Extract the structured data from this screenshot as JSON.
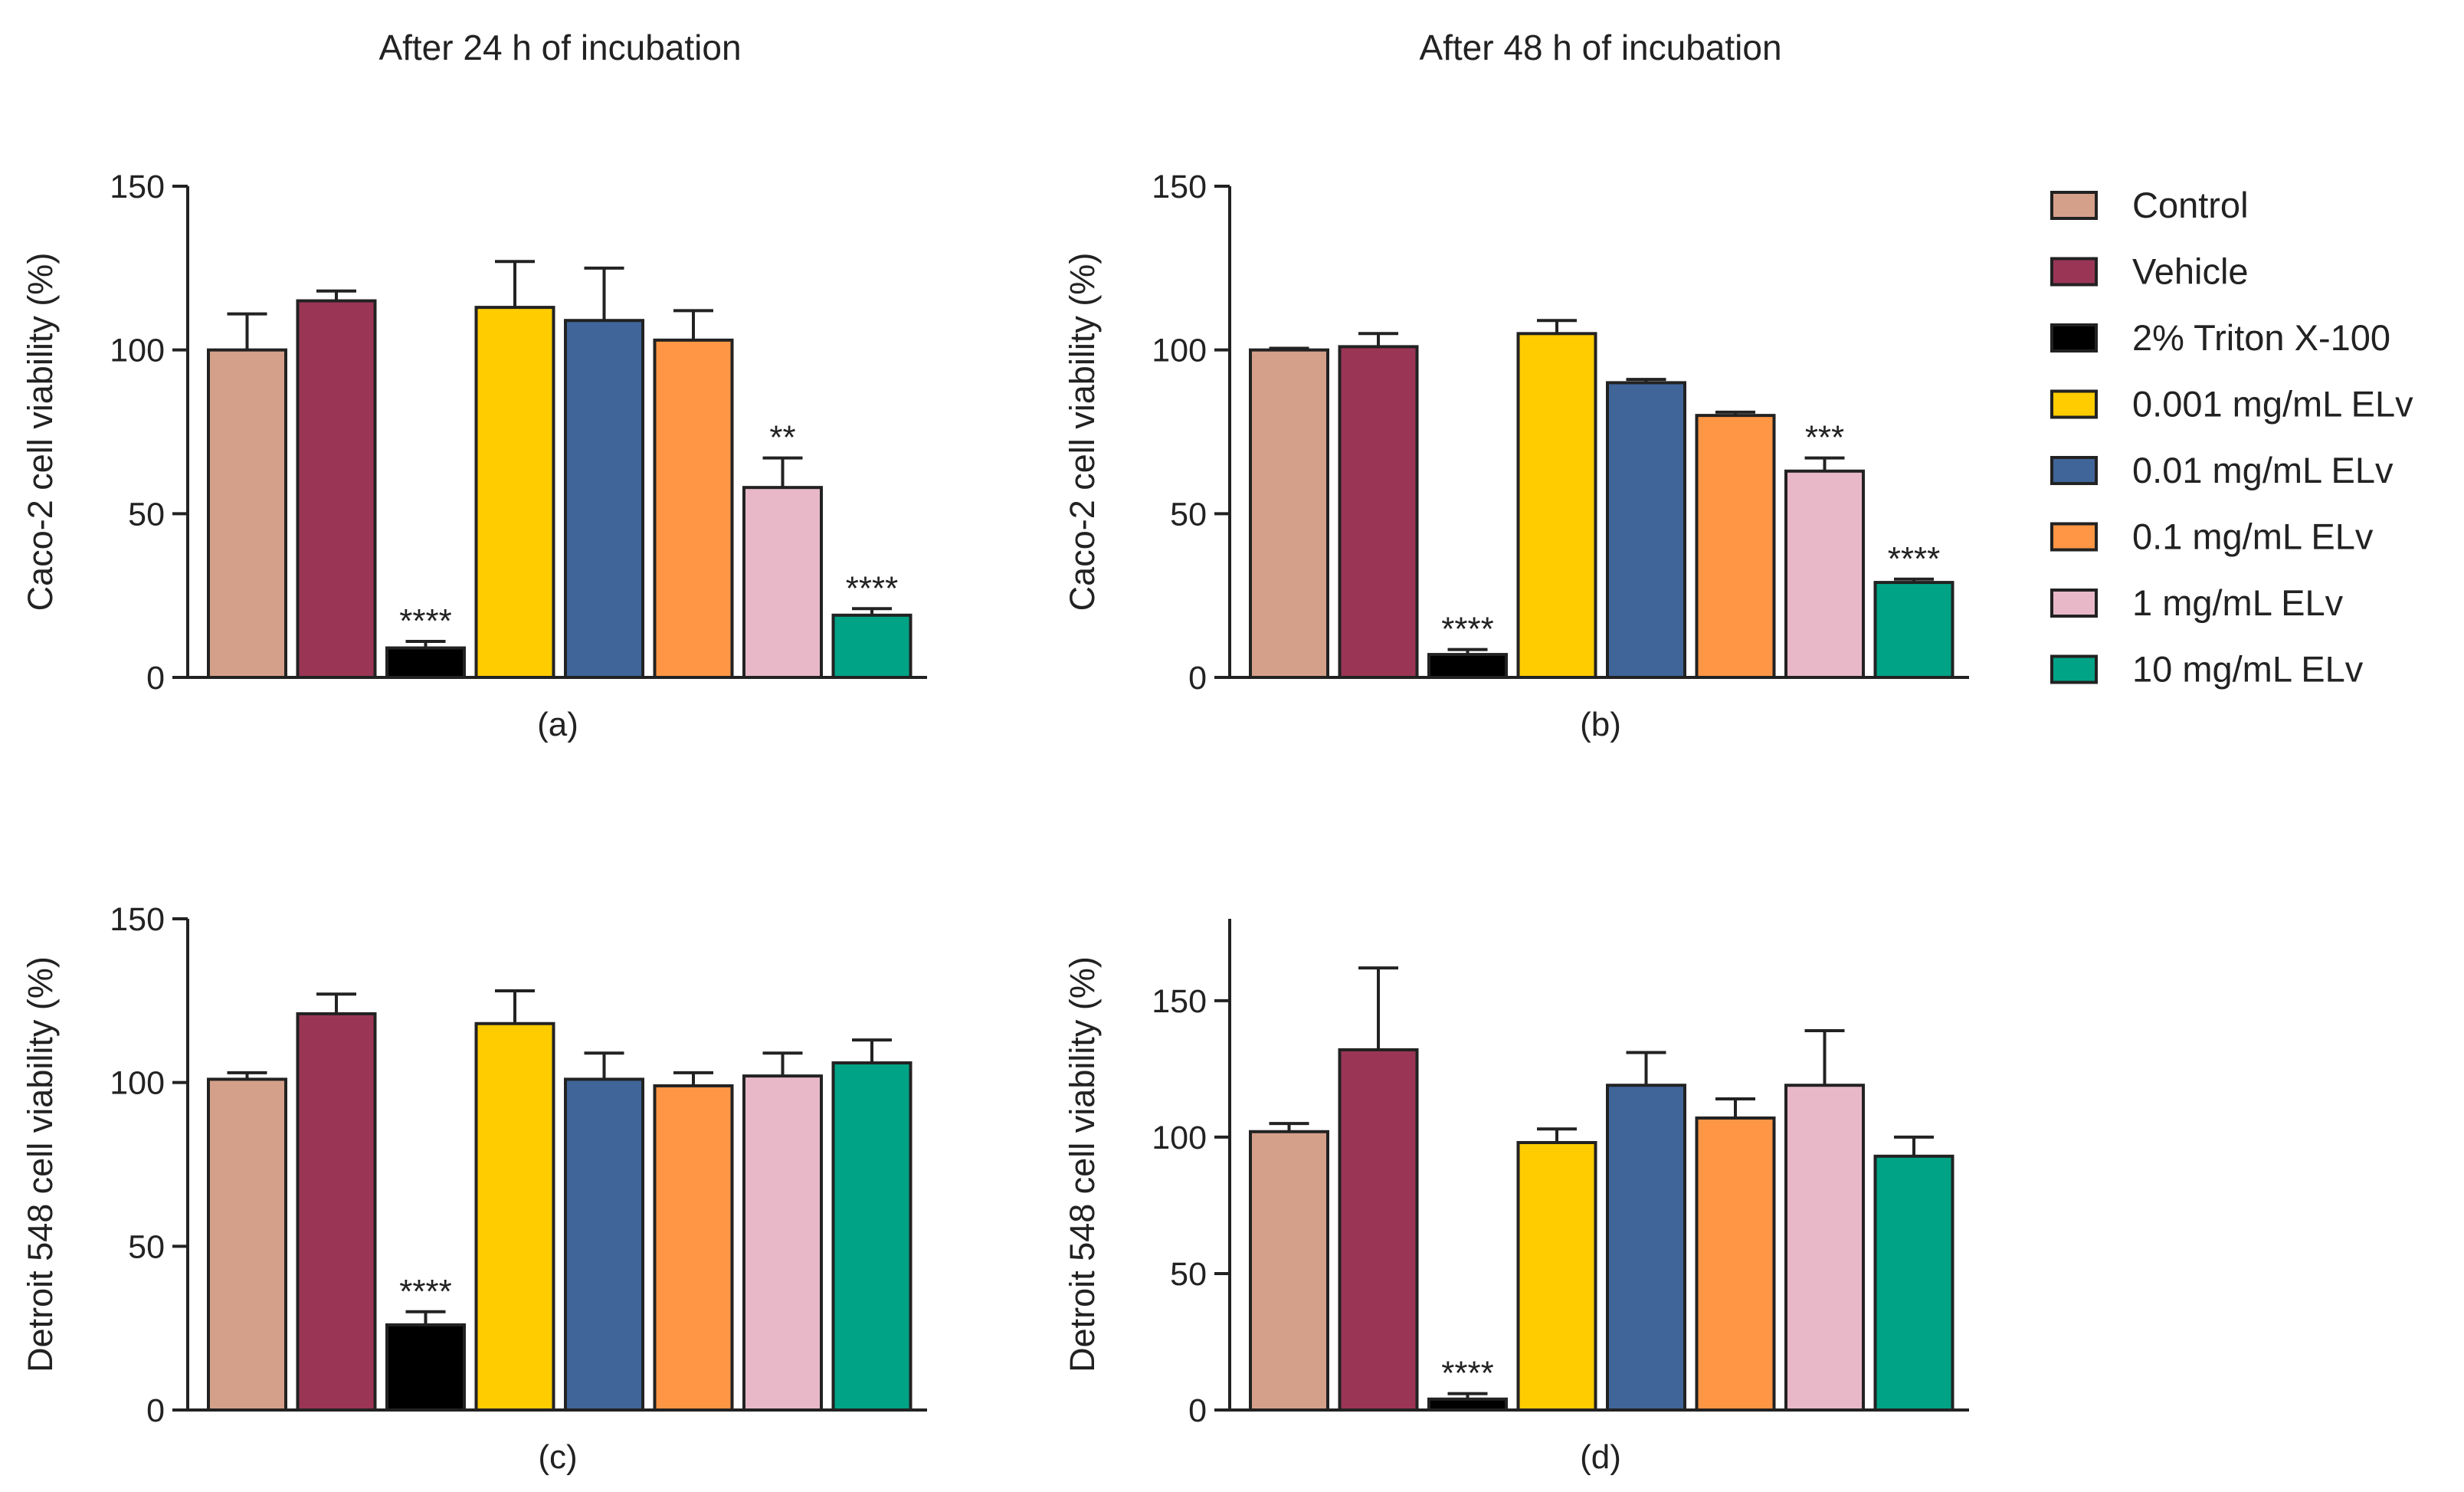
{
  "figure": {
    "col_titles": [
      "After 24 h of incubation",
      "After 48 h of incubation"
    ]
  },
  "legend": {
    "entries": [
      {
        "label": "Control",
        "color": "#d5a08a"
      },
      {
        "label": "Vehicle",
        "color": "#9b3556"
      },
      {
        "label": "2% Triton X-100",
        "color": "#000000"
      },
      {
        "label": "0.001 mg/mL ELv",
        "color": "#ffcc00"
      },
      {
        "label": "0.01 mg/mL ELv",
        "color": "#3f6599"
      },
      {
        "label": "0.1 mg/mL ELv",
        "color": "#ff9645"
      },
      {
        "label": "1 mg/mL ELv",
        "color": "#e8b8c9"
      },
      {
        "label": "10 mg/mL ELv",
        "color": "#00a385"
      }
    ]
  },
  "chart_data": [
    {
      "type": "bar",
      "panel": "(a)",
      "title": "After 24 h of incubation",
      "ylabel": "Caco-2 cell viability (%)",
      "ylim": [
        0,
        150
      ],
      "yticks": [
        0,
        50,
        100,
        150
      ],
      "categories": [
        "Control",
        "Vehicle",
        "2% Triton X-100",
        "0.001 mg/mL ELv",
        "0.01 mg/mL ELv",
        "0.1 mg/mL ELv",
        "1 mg/mL ELv",
        "10 mg/mL ELv"
      ],
      "values": [
        100,
        115,
        9,
        113,
        109,
        103,
        58,
        19
      ],
      "errors": [
        11,
        3,
        2,
        14,
        16,
        9,
        9,
        2
      ],
      "significance": [
        "",
        "",
        "****",
        "",
        "",
        "",
        "**",
        "****"
      ]
    },
    {
      "type": "bar",
      "panel": "(b)",
      "title": "After 48 h of incubation",
      "ylabel": "Caco-2 cell viability (%)",
      "ylim": [
        0,
        150
      ],
      "yticks": [
        0,
        50,
        100,
        150
      ],
      "categories": [
        "Control",
        "Vehicle",
        "2% Triton X-100",
        "0.001 mg/mL ELv",
        "0.01 mg/mL ELv",
        "0.1 mg/mL ELv",
        "1 mg/mL ELv",
        "10 mg/mL ELv"
      ],
      "values": [
        100,
        101,
        7,
        105,
        90,
        80,
        63,
        29
      ],
      "errors": [
        0.5,
        4,
        1.5,
        4,
        1,
        1,
        4,
        1
      ],
      "significance": [
        "",
        "",
        "****",
        "",
        "",
        "",
        "***",
        "****"
      ]
    },
    {
      "type": "bar",
      "panel": "(c)",
      "title": "",
      "ylabel": "Detroit 548 cell viability (%)",
      "ylim": [
        0,
        150
      ],
      "yticks": [
        0,
        50,
        100,
        150
      ],
      "categories": [
        "Control",
        "Vehicle",
        "2% Triton X-100",
        "0.001 mg/mL ELv",
        "0.01 mg/mL ELv",
        "0.1 mg/mL ELv",
        "1 mg/mL ELv",
        "10 mg/mL ELv"
      ],
      "values": [
        101,
        121,
        26,
        118,
        101,
        99,
        102,
        106
      ],
      "errors": [
        2,
        6,
        4,
        10,
        8,
        4,
        7,
        7
      ],
      "significance": [
        "",
        "",
        "****",
        "",
        "",
        "",
        "",
        ""
      ]
    },
    {
      "type": "bar",
      "panel": "(d)",
      "title": "",
      "ylabel": "Detroit 548 cell viability (%)",
      "ylim": [
        0,
        180
      ],
      "yticks": [
        0,
        50,
        100,
        150
      ],
      "categories": [
        "Control",
        "Vehicle",
        "2% Triton X-100",
        "0.001 mg/mL ELv",
        "0.01 mg/mL ELv",
        "0.1 mg/mL ELv",
        "1 mg/mL ELv",
        "10 mg/mL ELv"
      ],
      "values": [
        102,
        132,
        4,
        98,
        119,
        107,
        119,
        93
      ],
      "errors": [
        3,
        30,
        2,
        5,
        12,
        7,
        20,
        7
      ],
      "significance": [
        "",
        "",
        "****",
        "",
        "",
        "",
        "",
        ""
      ]
    }
  ]
}
